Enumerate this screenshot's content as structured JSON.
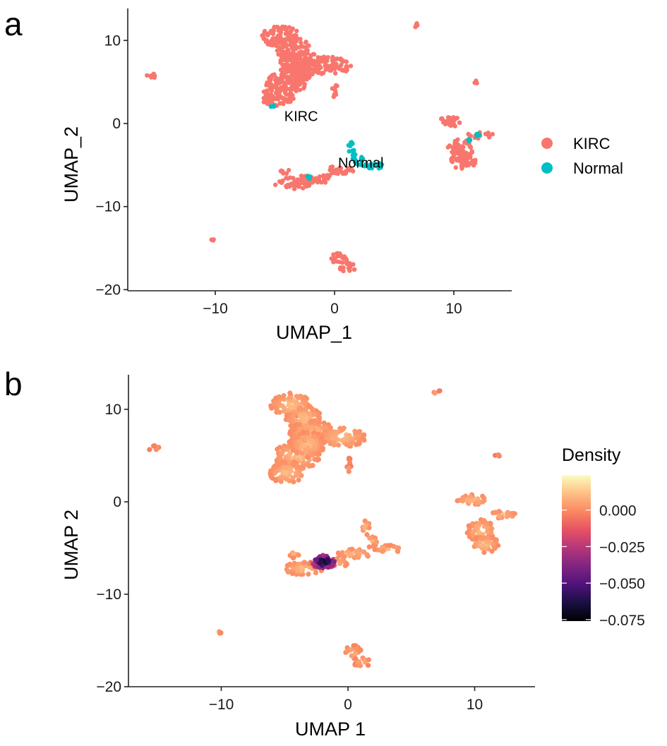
{
  "chart_data": [
    {
      "panel": "a",
      "type": "scatter",
      "title": "",
      "xlabel": "UMAP_1",
      "ylabel": "UMAP_2",
      "xlim": [
        -17,
        15
      ],
      "ylim": [
        -20,
        14
      ],
      "xticks": [
        -10,
        0,
        10
      ],
      "yticks": [
        -20,
        -10,
        0,
        10
      ],
      "grid": false,
      "legend": {
        "placement": "right",
        "entries": [
          {
            "label": "KIRC",
            "color": "#F8766D"
          },
          {
            "label": "Normal",
            "color": "#00BFC4"
          }
        ]
      },
      "annotations": [
        {
          "text": "KIRC",
          "x": -2.8,
          "y": 0.9
        },
        {
          "text": "Normal",
          "x": 2.2,
          "y": -4.7
        }
      ],
      "clusters": [
        {
          "group": "KIRC",
          "blobs": [
            [
              -4.5,
              10.5,
              1.6,
              1.3
            ],
            [
              -3.5,
              9,
              1.4,
              1.4
            ],
            [
              -2.8,
              7.5,
              1.8,
              1.2
            ],
            [
              -0.5,
              7,
              1.9,
              1.1
            ],
            [
              -4,
              5,
              1.8,
              1.6
            ],
            [
              -4.8,
              3.2,
              1.4,
              1.2
            ],
            [
              -3.2,
              6.2,
              1.4,
              1.4
            ]
          ]
        },
        {
          "group": "KIRC",
          "blobs": [
            [
              0,
              4.3,
              0.25,
              0.5
            ],
            [
              0.1,
              3.5,
              0.25,
              0.4
            ]
          ]
        },
        {
          "group": "KIRC",
          "blobs": [
            [
              -15.3,
              5.8,
              0.5,
              0.3
            ]
          ]
        },
        {
          "group": "KIRC",
          "blobs": [
            [
              7,
              11.8,
              0.35,
              0.3
            ]
          ]
        },
        {
          "group": "KIRC",
          "blobs": [
            [
              11.8,
              5,
              0.2,
              0.2
            ]
          ]
        },
        {
          "group": "KIRC",
          "blobs": [
            [
              -3.5,
              -7.2,
              1.6,
              0.7
            ],
            [
              -1.5,
              -6.6,
              1.6,
              0.6
            ],
            [
              0.5,
              -5.6,
              1.3,
              0.5
            ],
            [
              -4.2,
              -5.6,
              0.4,
              0.5
            ]
          ]
        },
        {
          "group": "Normal",
          "blobs": [
            [
              1.4,
              -2.8,
              0.3,
              0.8
            ],
            [
              1.8,
              -4.3,
              0.6,
              0.6
            ],
            [
              3.2,
              -5.1,
              1.1,
              0.4
            ]
          ]
        },
        {
          "group": "Normal",
          "blobs": [
            [
              -5.2,
              2.1,
              0.15,
              0.15
            ],
            [
              -2.2,
              -6.5,
              0.2,
              0.2
            ],
            [
              11.2,
              -2.1,
              0.2,
              0.2
            ],
            [
              12,
              -1.4,
              0.2,
              0.2
            ]
          ]
        },
        {
          "group": "KIRC",
          "blobs": [
            [
              9.8,
              0.2,
              1.2,
              0.6
            ],
            [
              10.5,
              -3.2,
              1.1,
              1.3
            ],
            [
              10.8,
              -4.6,
              1.1,
              0.9
            ],
            [
              12.2,
              -1.4,
              1.1,
              0.4
            ]
          ]
        },
        {
          "group": "KIRC",
          "blobs": [
            [
              -10.1,
              -14,
              0.25,
              0.25
            ]
          ]
        },
        {
          "group": "KIRC",
          "blobs": [
            [
              0.4,
              -16.3,
              0.7,
              0.8
            ],
            [
              1.1,
              -17.3,
              0.7,
              0.6
            ]
          ]
        }
      ]
    },
    {
      "panel": "b",
      "type": "scatter",
      "title": "",
      "xlabel": "UMAP 1",
      "ylabel": "UMAP 2",
      "xlim": [
        -17,
        15
      ],
      "ylim": [
        -20,
        14
      ],
      "xticks": [
        -10,
        0,
        10
      ],
      "yticks": [
        -20,
        -10,
        0,
        10
      ],
      "grid": false,
      "colorbar": {
        "title": "Density",
        "colormap": "magma",
        "range": [
          -0.076,
          0.024
        ],
        "ticks": [
          0.0,
          -0.025,
          -0.05,
          -0.075
        ],
        "tick_labels": [
          "0.000",
          "-0.025",
          "-0.050",
          "-0.075"
        ],
        "placement": "right"
      },
      "clusters": [
        {
          "density": 0.004,
          "blobs": [
            [
              -4.5,
              10.5,
              1.6,
              1.3
            ],
            [
              -3.5,
              9,
              1.4,
              1.4
            ],
            [
              -2.8,
              7.5,
              1.8,
              1.2
            ],
            [
              -0.5,
              7,
              1.9,
              1.1
            ],
            [
              -4,
              5,
              1.8,
              1.6
            ],
            [
              -4.8,
              3.2,
              1.4,
              1.2
            ],
            [
              -3.2,
              6.2,
              1.4,
              1.4
            ]
          ]
        },
        {
          "density": 0.0,
          "blobs": [
            [
              0,
              4.3,
              0.25,
              0.5
            ],
            [
              0.1,
              3.5,
              0.25,
              0.4
            ]
          ]
        },
        {
          "density": 0.0,
          "blobs": [
            [
              -15.3,
              5.8,
              0.5,
              0.3
            ]
          ]
        },
        {
          "density": 0.0,
          "blobs": [
            [
              7,
              11.8,
              0.35,
              0.3
            ]
          ]
        },
        {
          "density": -0.002,
          "blobs": [
            [
              11.8,
              5,
              0.2,
              0.2
            ]
          ]
        },
        {
          "density": 0.004,
          "blobs": [
            [
              -3.5,
              -7.2,
              1.6,
              0.7
            ],
            [
              -1.5,
              -6.6,
              1.6,
              0.6
            ],
            [
              0.5,
              -5.6,
              1.3,
              0.5
            ],
            [
              -4.2,
              -5.6,
              0.4,
              0.5
            ],
            [
              1.4,
              -2.8,
              0.3,
              0.8
            ],
            [
              1.8,
              -4.3,
              0.6,
              0.6
            ],
            [
              3.2,
              -5.1,
              1.1,
              0.4
            ]
          ]
        },
        {
          "density": 0.004,
          "blobs": [
            [
              9.8,
              0.2,
              1.2,
              0.6
            ],
            [
              10.5,
              -3.2,
              1.1,
              1.3
            ],
            [
              10.8,
              -4.6,
              1.1,
              0.9
            ],
            [
              12.2,
              -1.4,
              1.1,
              0.4
            ]
          ]
        },
        {
          "density": 0.0,
          "blobs": [
            [
              -10.1,
              -14,
              0.25,
              0.25
            ]
          ]
        },
        {
          "density": 0.002,
          "blobs": [
            [
              0.4,
              -16.3,
              0.7,
              0.8
            ],
            [
              1.1,
              -17.3,
              0.7,
              0.6
            ]
          ]
        }
      ],
      "hotspot": {
        "center": [
          -1.9,
          -6.5
        ],
        "min_density": -0.075,
        "radius": 1.1
      }
    }
  ]
}
